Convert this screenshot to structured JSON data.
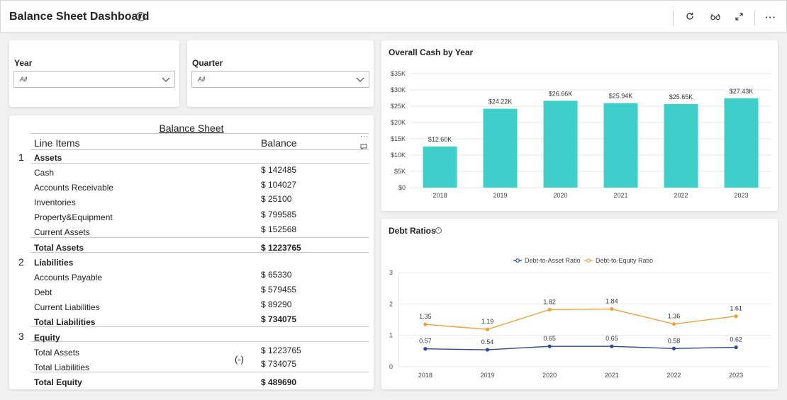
{
  "header": {
    "title": "Balance Sheet Dashboard",
    "icons": [
      "info-icon",
      "refresh-icon",
      "glasses-icon",
      "expand-icon",
      "more-icon"
    ]
  },
  "filters": {
    "year": {
      "label": "Year",
      "value": "All"
    },
    "quarter": {
      "label": "Quarter",
      "value": "All"
    }
  },
  "balance_sheet": {
    "title": "Balance Sheet",
    "col_items": "Line Items",
    "col_balance": "Balance",
    "section_numbers": [
      "1",
      "2",
      "3"
    ],
    "rows": [
      {
        "label": "Assets",
        "amount": "",
        "bold": true
      },
      {
        "label": "Cash",
        "amount": "$ 142485",
        "bold": false
      },
      {
        "label": "Accounts Receivable",
        "amount": "$ 104027",
        "bold": false
      },
      {
        "label": "Inventories",
        "amount": "$ 25100",
        "bold": false
      },
      {
        "label": "Property&Equipment",
        "amount": "$ 799585",
        "bold": false
      },
      {
        "label": "Current Assets",
        "amount": "$ 152568",
        "bold": false
      },
      {
        "label": "Total Assets",
        "amount": "$ 1223765",
        "bold": true
      },
      {
        "label": "Liabilities",
        "amount": "",
        "bold": true
      },
      {
        "label": "Accounts Payable",
        "amount": "$ 65330",
        "bold": false
      },
      {
        "label": "Debt",
        "amount": "$ 579455",
        "bold": false
      },
      {
        "label": "Current Liabilities",
        "amount": "$ 89290",
        "bold": false
      },
      {
        "label": "Total Liabilities",
        "amount": "$ 734075",
        "bold": true
      },
      {
        "label": "Equity",
        "amount": "",
        "bold": true
      },
      {
        "label": "Total Assets",
        "amount": "$ 1223765",
        "bold": false
      },
      {
        "label": "Total Liabilities",
        "amount": "$ 734075",
        "bold": false
      },
      {
        "label": "Total Equity",
        "amount": "$ 489690",
        "bold": true
      }
    ],
    "minus_marker": "(-)"
  },
  "chart_data": [
    {
      "type": "bar",
      "title": "Overall Cash by Year",
      "categories": [
        "2018",
        "2019",
        "2020",
        "2021",
        "2022",
        "2023"
      ],
      "values": [
        12600,
        24220,
        26660,
        25940,
        25650,
        27430
      ],
      "data_labels": [
        "$12.60K",
        "$24.22K",
        "$26.66K",
        "$25.94K",
        "$25.65K",
        "$27.43K"
      ],
      "y_ticks": [
        "$0",
        "$5K",
        "$10K",
        "$15K",
        "$20K",
        "$25K",
        "$30K",
        "$35K"
      ],
      "ylim": [
        0,
        35000
      ],
      "color": "#3ecfcb",
      "grid": true
    },
    {
      "type": "line",
      "title": "Debt Ratios",
      "categories": [
        "2018",
        "2019",
        "2020",
        "2021",
        "2022",
        "2023"
      ],
      "series": [
        {
          "name": "Debt-to-Asset Ratio",
          "values": [
            0.57,
            0.54,
            0.65,
            0.65,
            0.58,
            0.62
          ],
          "color": "#2b4a8b"
        },
        {
          "name": "Debt-to-Equity Ratio",
          "values": [
            1.35,
            1.19,
            1.82,
            1.84,
            1.36,
            1.61
          ],
          "color": "#e8a33d"
        }
      ],
      "y_ticks": [
        "0",
        "1",
        "2",
        "3"
      ],
      "ylim": [
        0,
        3
      ],
      "legend": "top-center",
      "grid": true
    }
  ]
}
